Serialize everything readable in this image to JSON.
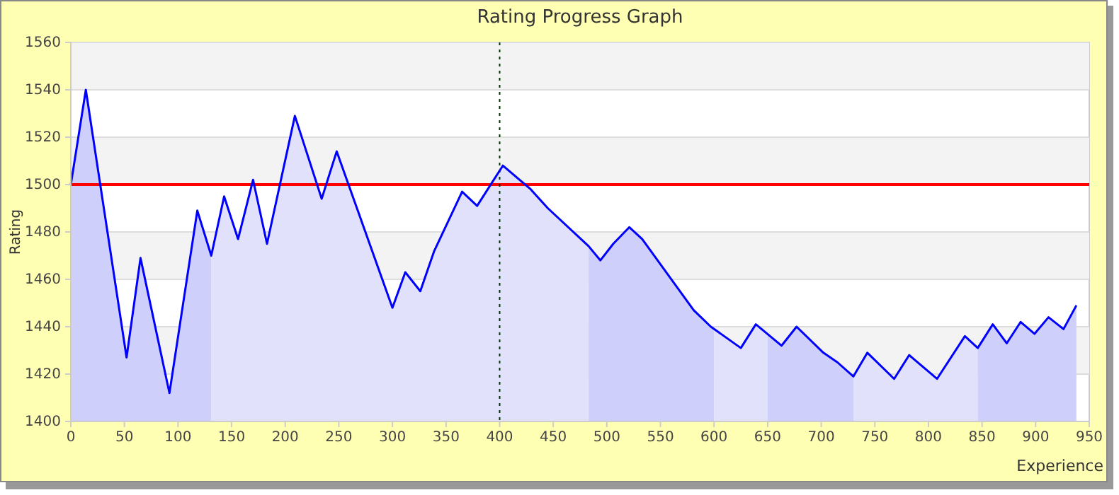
{
  "chart_data": {
    "type": "line",
    "title": "Rating Progress Graph",
    "xlabel": "Experience",
    "ylabel": "Rating",
    "xlim": [
      0,
      950
    ],
    "xticks": [
      0,
      50,
      100,
      150,
      200,
      250,
      300,
      350,
      400,
      450,
      500,
      550,
      600,
      650,
      700,
      750,
      800,
      850,
      900,
      950
    ],
    "ylim": [
      1400,
      1560
    ],
    "yticks": [
      1400,
      1420,
      1440,
      1460,
      1480,
      1500,
      1520,
      1540,
      1560
    ],
    "grid": "y",
    "marker": "none",
    "line_style": "solid",
    "ref_lines": [
      {
        "axis": "y",
        "value": 1500,
        "color": "#ff0000",
        "line_style": "solid"
      },
      {
        "axis": "x",
        "value": 400,
        "color": "#003300",
        "line_style": "dotted"
      }
    ],
    "series": [
      {
        "type": "area",
        "color": "#cfcffb",
        "x": [
          0,
          14,
          52,
          65,
          92,
          118,
          131
        ],
        "values": [
          1500,
          1540,
          1427,
          1469,
          1412,
          1489,
          1470
        ]
      },
      {
        "type": "area",
        "color": "#e1e1fb",
        "x": [
          131,
          143,
          156,
          170,
          183,
          209,
          234,
          248,
          300,
          312,
          326,
          339,
          365,
          379,
          403,
          429,
          445,
          483
        ],
        "values": [
          1470,
          1495,
          1477,
          1502,
          1475,
          1529,
          1494,
          1514,
          1448,
          1463,
          1455,
          1472,
          1497,
          1491,
          1508,
          1498,
          1490,
          1474
        ]
      },
      {
        "type": "area",
        "color": "#cfcffb",
        "x": [
          483,
          494,
          506,
          521,
          533,
          581,
          597,
          600
        ],
        "values": [
          1474,
          1468,
          1475,
          1482,
          1477,
          1447,
          1440,
          1439
        ]
      },
      {
        "type": "area",
        "color": "#e1e1fb",
        "x": [
          600,
          625,
          639,
          650
        ],
        "values": [
          1439,
          1431,
          1441,
          1437
        ]
      },
      {
        "type": "area",
        "color": "#cfcffb",
        "x": [
          650,
          663,
          677,
          702,
          715,
          730
        ],
        "values": [
          1437,
          1432,
          1440,
          1429,
          1425,
          1419
        ]
      },
      {
        "type": "area",
        "color": "#e1e1fb",
        "x": [
          730,
          743,
          768,
          782,
          808,
          834,
          846
        ],
        "values": [
          1419,
          1429,
          1418,
          1428,
          1418,
          1436,
          1431
        ]
      },
      {
        "type": "area",
        "color": "#cfcffb",
        "x": [
          846,
          860,
          873,
          886,
          899,
          912,
          926,
          938
        ],
        "values": [
          1431,
          1441,
          1433,
          1442,
          1437,
          1444,
          1439,
          1449
        ]
      },
      {
        "color": "#0000ff",
        "x": [
          0,
          14,
          52,
          65,
          92,
          118,
          131,
          143,
          156,
          170,
          183,
          209,
          234,
          248,
          300,
          312,
          326,
          339,
          365,
          379,
          403,
          429,
          445,
          483,
          494,
          506,
          521,
          533,
          581,
          597,
          625,
          639,
          663,
          677,
          702,
          715,
          730,
          743,
          768,
          782,
          808,
          834,
          846,
          860,
          873,
          886,
          899,
          912,
          926,
          938
        ],
        "values": [
          1500,
          1540,
          1427,
          1469,
          1412,
          1489,
          1470,
          1495,
          1477,
          1502,
          1475,
          1529,
          1494,
          1514,
          1448,
          1463,
          1455,
          1472,
          1497,
          1491,
          1508,
          1498,
          1490,
          1474,
          1468,
          1475,
          1482,
          1477,
          1447,
          1440,
          1431,
          1441,
          1432,
          1440,
          1429,
          1425,
          1419,
          1429,
          1418,
          1428,
          1418,
          1436,
          1431,
          1441,
          1433,
          1442,
          1437,
          1444,
          1439,
          1449
        ]
      }
    ]
  }
}
